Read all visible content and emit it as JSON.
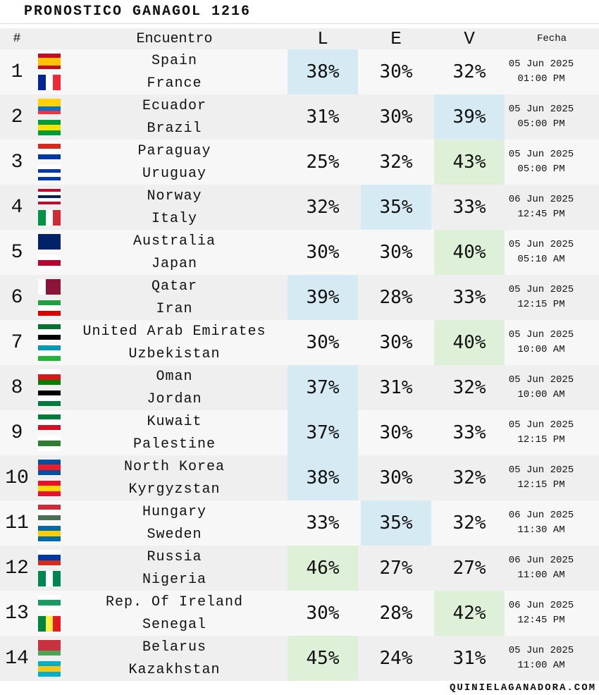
{
  "header": {
    "title": "PRONOSTICO GANAGOL 1216"
  },
  "table": {
    "columns": [
      "#",
      "Encuentro",
      "L",
      "E",
      "V",
      "Fecha"
    ],
    "rows": [
      {
        "num": 1,
        "home": "Spain",
        "away": "France",
        "L": "38%",
        "E": "30%",
        "V": "32%",
        "date": "05 Jun 2025",
        "time": "01:00 PM",
        "highlight": "L",
        "highlight_color": "#d6eaf4"
      },
      {
        "num": 2,
        "home": "Ecuador",
        "away": "Brazil",
        "L": "31%",
        "E": "30%",
        "V": "39%",
        "date": "05 Jun 2025",
        "time": "05:00 PM",
        "highlight": "V",
        "highlight_color": "#d6eaf4"
      },
      {
        "num": 3,
        "home": "Paraguay",
        "away": "Uruguay",
        "L": "25%",
        "E": "32%",
        "V": "43%",
        "date": "05 Jun 2025",
        "time": "05:00 PM",
        "highlight": "V",
        "highlight_color": "#dff0d8"
      },
      {
        "num": 4,
        "home": "Norway",
        "away": "Italy",
        "L": "32%",
        "E": "35%",
        "V": "33%",
        "date": "06 Jun 2025",
        "time": "12:45 PM",
        "highlight": "E",
        "highlight_color": "#d6eaf4"
      },
      {
        "num": 5,
        "home": "Australia",
        "away": "Japan",
        "L": "30%",
        "E": "30%",
        "V": "40%",
        "date": "05 Jun 2025",
        "time": "05:10 AM",
        "highlight": "V",
        "highlight_color": "#dff0d8"
      },
      {
        "num": 6,
        "home": "Qatar",
        "away": "Iran",
        "L": "39%",
        "E": "28%",
        "V": "33%",
        "date": "05 Jun 2025",
        "time": "12:15 PM",
        "highlight": "L",
        "highlight_color": "#d6eaf4"
      },
      {
        "num": 7,
        "home": "United Arab Emirates",
        "away": "Uzbekistan",
        "L": "30%",
        "E": "30%",
        "V": "40%",
        "date": "05 Jun 2025",
        "time": "10:00 AM",
        "highlight": "V",
        "highlight_color": "#dff0d8"
      },
      {
        "num": 8,
        "home": "Oman",
        "away": "Jordan",
        "L": "37%",
        "E": "31%",
        "V": "32%",
        "date": "05 Jun 2025",
        "time": "10:00 AM",
        "highlight": "L",
        "highlight_color": "#d6eaf4"
      },
      {
        "num": 9,
        "home": "Kuwait",
        "away": "Palestine",
        "L": "37%",
        "E": "30%",
        "V": "33%",
        "date": "05 Jun 2025",
        "time": "12:15 PM",
        "highlight": "L",
        "highlight_color": "#d6eaf4"
      },
      {
        "num": 10,
        "home": "North Korea",
        "away": "Kyrgyzstan",
        "L": "38%",
        "E": "30%",
        "V": "32%",
        "date": "05 Jun 2025",
        "time": "12:15 PM",
        "highlight": "L",
        "highlight_color": "#d6eaf4"
      },
      {
        "num": 11,
        "home": "Hungary",
        "away": "Sweden",
        "L": "33%",
        "E": "35%",
        "V": "32%",
        "date": "06 Jun 2025",
        "time": "11:30 AM",
        "highlight": "E",
        "highlight_color": "#d6eaf4"
      },
      {
        "num": 12,
        "home": "Russia",
        "away": "Nigeria",
        "L": "46%",
        "E": "27%",
        "V": "27%",
        "date": "06 Jun 2025",
        "time": "11:00 AM",
        "highlight": "L",
        "highlight_color": "#dff0d8"
      },
      {
        "num": 13,
        "home": "Rep. Of Ireland",
        "away": "Senegal",
        "L": "30%",
        "E": "28%",
        "V": "42%",
        "date": "06 Jun 2025",
        "time": "12:45 PM",
        "highlight": "V",
        "highlight_color": "#dff0d8"
      },
      {
        "num": 14,
        "home": "Belarus",
        "away": "Kazakhstan",
        "L": "45%",
        "E": "24%",
        "V": "31%",
        "date": "05 Jun 2025",
        "time": "11:00 AM",
        "highlight": "L",
        "highlight_color": "#dff0d8"
      }
    ]
  },
  "footer": {
    "site": "QUINIELAGANADORA.COM"
  }
}
